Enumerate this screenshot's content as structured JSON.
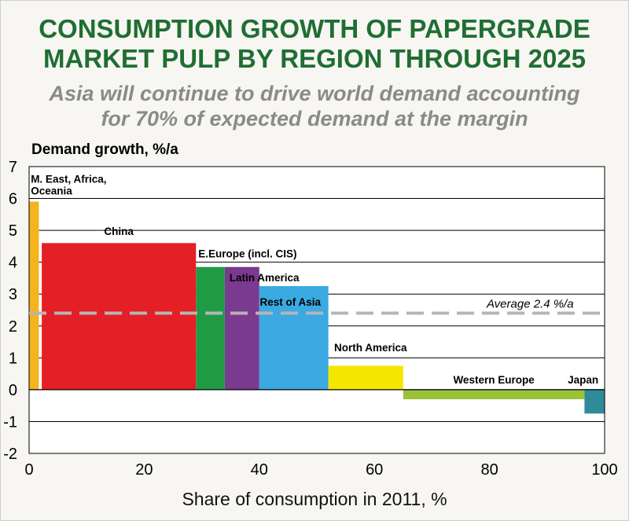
{
  "chart_data": {
    "type": "bar",
    "variant": "variwide",
    "title_lines": [
      "CONSUMPTION GROWTH OF PAPERGRADE",
      "MARKET PULP BY REGION THROUGH 2025"
    ],
    "subtitle_lines": [
      "Asia will continue to drive world demand accounting",
      "for 70% of expected demand at the margin"
    ],
    "ylabel": "Demand growth, %/a",
    "xlabel": "Share of consumption in 2011, %",
    "xlim": [
      0,
      100
    ],
    "ylim": [
      -2,
      7
    ],
    "xticks": [
      0,
      20,
      40,
      60,
      80,
      100
    ],
    "yticks": [
      -2,
      -1,
      0,
      1,
      2,
      3,
      4,
      5,
      6,
      7
    ],
    "grid": true,
    "average": {
      "value": 2.4,
      "label": "Average 2.4 %/a"
    },
    "bars": [
      {
        "label_lines": [
          "M. East, Africa,",
          "Oceania"
        ],
        "x_start": 0,
        "x_end": 1.7,
        "value": 5.9,
        "color": "#f5b41e"
      },
      {
        "label_lines": [
          "China"
        ],
        "x_start": 2.2,
        "x_end": 29,
        "value": 4.6,
        "color": "#e41f26"
      },
      {
        "label_lines": [
          "E.Europe (incl. CIS)"
        ],
        "x_start": 29,
        "x_end": 34,
        "value": 3.85,
        "color": "#1f9b46"
      },
      {
        "label_lines": [
          "Latin America"
        ],
        "x_start": 34,
        "x_end": 40,
        "value": 3.85,
        "color": "#7a3a8f"
      },
      {
        "label_lines": [
          "Rest of Asia"
        ],
        "x_start": 40,
        "x_end": 52,
        "value": 3.25,
        "color": "#3ba9e2"
      },
      {
        "label_lines": [
          "North America"
        ],
        "x_start": 52,
        "x_end": 65,
        "value": 0.75,
        "color": "#f5e600"
      },
      {
        "label_lines": [
          "Western Europe"
        ],
        "x_start": 65,
        "x_end": 96.5,
        "value": -0.3,
        "color": "#99c23a"
      },
      {
        "label_lines": [
          "Japan"
        ],
        "x_start": 96.5,
        "x_end": 100,
        "value": -0.75,
        "color": "#2f8b9a"
      }
    ]
  }
}
